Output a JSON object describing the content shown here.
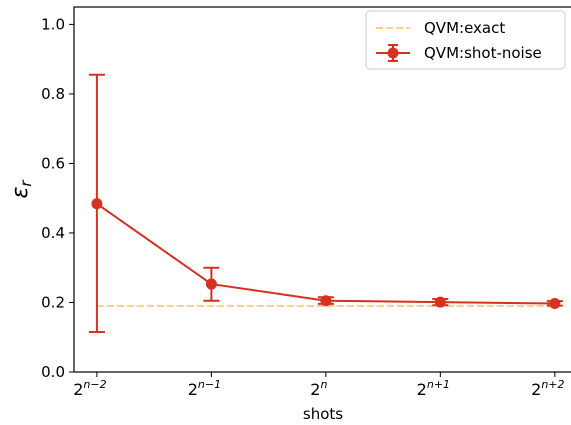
{
  "chart_data": {
    "type": "line",
    "xlabel": "shots",
    "ylabel": "ε",
    "ylabel_subscript": "r",
    "ylim": [
      0,
      1.05
    ],
    "yticks": [
      0.0,
      0.2,
      0.4,
      0.6,
      0.8,
      1.0
    ],
    "ytick_labels": [
      "0.0",
      "0.2",
      "0.4",
      "0.6",
      "0.8",
      "1.0"
    ],
    "xticks": [
      {
        "base": "2",
        "exp": "n−2"
      },
      {
        "base": "2",
        "exp": "n−1"
      },
      {
        "base": "2",
        "exp": "n"
      },
      {
        "base": "2",
        "exp": "n+1"
      },
      {
        "base": "2",
        "exp": "n+2"
      }
    ],
    "grid": false,
    "legend_position": "top-right",
    "series": [
      {
        "name": "QVM:exact",
        "style": "dashed",
        "color": "#fdd08a",
        "x": [
          0,
          1,
          2,
          3,
          4
        ],
        "y": [
          0.19,
          0.19,
          0.19,
          0.19,
          0.19
        ]
      },
      {
        "name": "QVM:shot-noise",
        "style": "solid-marker-errorbar",
        "color": "#d7301f",
        "x": [
          0,
          1,
          2,
          3,
          4
        ],
        "y": [
          0.484,
          0.253,
          0.205,
          0.201,
          0.197
        ],
        "err_low": [
          0.115,
          0.205,
          0.196,
          0.192,
          0.191
        ],
        "err_high": [
          0.855,
          0.3,
          0.215,
          0.21,
          0.204
        ]
      }
    ]
  }
}
